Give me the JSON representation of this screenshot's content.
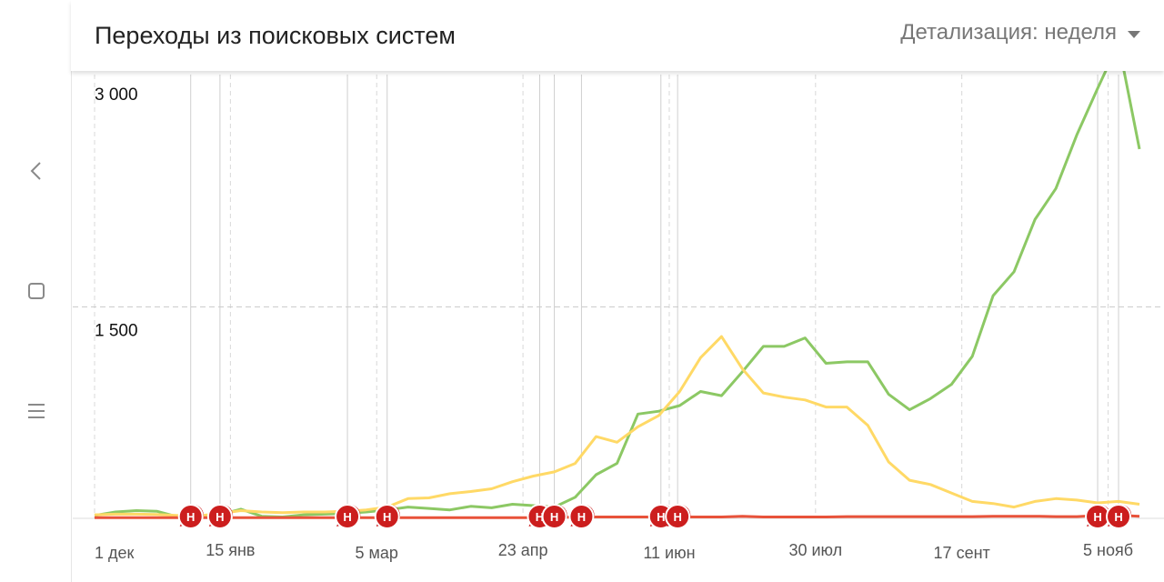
{
  "header": {
    "title": "Переходы из поисковых систем",
    "detail_label": "Детализация: неделя"
  },
  "sidebar": {
    "items": [
      {
        "icon": "chevron-left-icon"
      },
      {
        "icon": "square-icon"
      },
      {
        "icon": "menu-icon"
      }
    ]
  },
  "chart_data": {
    "type": "line",
    "title": "Переходы из поисковых систем",
    "xlabel": "",
    "ylabel": "",
    "ylim": [
      0,
      3000
    ],
    "y_ticks": [
      {
        "value": 3000,
        "label": "3 000"
      },
      {
        "value": 1500,
        "label": "1 500"
      }
    ],
    "x_tick_labels": [
      {
        "index": 0,
        "label": "1 дек"
      },
      {
        "index": 6.5,
        "label": "15 янв"
      },
      {
        "index": 13.5,
        "label": "5 мар"
      },
      {
        "index": 20.5,
        "label": "23 апр"
      },
      {
        "index": 27.5,
        "label": "11 июн"
      },
      {
        "index": 34.5,
        "label": "30 июл"
      },
      {
        "index": 41.5,
        "label": "17 сент"
      },
      {
        "index": 48.5,
        "label": "5 нояб"
      }
    ],
    "colors": {
      "green": "#8cc864",
      "yellow": "#ffd966",
      "red": "#e8523a"
    },
    "series": [
      {
        "color": "#8cc864",
        "values": [
          20,
          45,
          55,
          50,
          10,
          8,
          25,
          65,
          15,
          10,
          25,
          30,
          35,
          45,
          60,
          80,
          70,
          60,
          85,
          75,
          100,
          90,
          80,
          150,
          310,
          390,
          740,
          760,
          800,
          900,
          870,
          1040,
          1220,
          1220,
          1280,
          1100,
          1110,
          1110,
          880,
          770,
          850,
          950,
          1150,
          1580,
          1750,
          2120,
          2340,
          2720,
          3050,
          3370,
          2620
        ]
      },
      {
        "color": "#ffd966",
        "values": [
          25,
          30,
          30,
          28,
          20,
          18,
          35,
          55,
          45,
          40,
          45,
          45,
          50,
          60,
          80,
          140,
          145,
          175,
          190,
          210,
          260,
          300,
          330,
          390,
          580,
          540,
          650,
          730,
          900,
          1140,
          1290,
          1060,
          890,
          860,
          840,
          790,
          790,
          660,
          400,
          270,
          240,
          180,
          120,
          105,
          80,
          120,
          140,
          130,
          110,
          120,
          100
        ]
      },
      {
        "color": "#e8523a",
        "values": [
          5,
          5,
          5,
          5,
          5,
          5,
          5,
          5,
          5,
          5,
          5,
          5,
          5,
          5,
          5,
          5,
          5,
          5,
          5,
          5,
          5,
          5,
          5,
          10,
          10,
          10,
          10,
          10,
          10,
          10,
          10,
          15,
          10,
          10,
          10,
          10,
          12,
          12,
          12,
          12,
          12,
          12,
          12,
          15,
          15,
          15,
          12,
          12,
          20,
          22,
          15
        ]
      }
    ],
    "annotations": [
      {
        "index": 4.6,
        "label": "H"
      },
      {
        "index": 6.0,
        "label": "H"
      },
      {
        "index": 12.1,
        "label": "H"
      },
      {
        "index": 14.0,
        "label": "H"
      },
      {
        "index": 21.3,
        "label": "H"
      },
      {
        "index": 22.0,
        "label": "H"
      },
      {
        "index": 23.3,
        "label": "H"
      },
      {
        "index": 27.1,
        "label": "H"
      },
      {
        "index": 27.9,
        "label": "H"
      },
      {
        "index": 48.0,
        "label": "H"
      },
      {
        "index": 49.0,
        "label": "H"
      }
    ]
  }
}
